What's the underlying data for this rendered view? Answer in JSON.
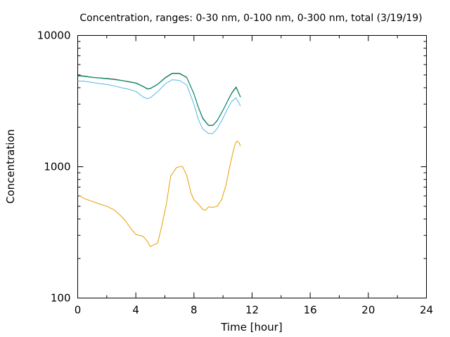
{
  "chart_data": {
    "type": "line",
    "title": "Concentration, ranges: 0-30 nm, 0-100 nm, 0-300 nm, total (3/19/19)",
    "xlabel": "Time [hour]",
    "ylabel": "Concentration",
    "xlim": [
      0,
      24
    ],
    "ylim": [
      100,
      10000
    ],
    "y_scale": "log",
    "x_ticks": [
      0,
      4,
      8,
      12,
      16,
      20,
      24
    ],
    "x_tick_labels": [
      "0",
      "4",
      "8",
      "12",
      "16",
      "20",
      "24"
    ],
    "y_ticks": [
      100,
      1000,
      10000
    ],
    "y_tick_labels": [
      "100",
      "1000",
      "10000"
    ],
    "grid": false,
    "legend": "none",
    "series": [
      {
        "color": "#1a1a1a",
        "x": [
          0,
          0.5,
          1,
          1.5,
          2,
          2.5,
          3,
          3.5,
          4,
          4.5,
          4.8,
          5,
          5.5,
          6,
          6.5,
          7,
          7.5,
          8,
          8.3,
          8.6,
          9,
          9.3,
          9.6,
          10,
          10.3,
          10.6,
          10.9,
          11.2
        ],
        "y": [
          4950,
          4900,
          4800,
          4750,
          4700,
          4650,
          4550,
          4450,
          4350,
          4100,
          3920,
          3950,
          4250,
          4750,
          5150,
          5150,
          4800,
          3600,
          2850,
          2350,
          2070,
          2070,
          2250,
          2700,
          3150,
          3650,
          4050,
          3400
        ]
      },
      {
        "color": "#009e73",
        "x": [
          0,
          0.5,
          1,
          1.5,
          2,
          2.5,
          3,
          3.5,
          4,
          4.5,
          4.8,
          5,
          5.5,
          6,
          6.5,
          7,
          7.5,
          8,
          8.3,
          8.6,
          9,
          9.3,
          9.6,
          10,
          10.3,
          10.6,
          10.9,
          11.2
        ],
        "y": [
          4920,
          4870,
          4780,
          4730,
          4680,
          4620,
          4530,
          4430,
          4330,
          4080,
          3900,
          3930,
          4230,
          4720,
          5120,
          5120,
          4780,
          3580,
          2830,
          2330,
          2060,
          2060,
          2240,
          2690,
          3130,
          3620,
          4010,
          3380
        ]
      },
      {
        "color": "#56b4e9",
        "x": [
          0,
          0.5,
          1,
          1.5,
          2,
          2.5,
          3,
          3.5,
          4,
          4.5,
          4.8,
          5,
          5.5,
          6,
          6.5,
          7,
          7.5,
          8,
          8.3,
          8.6,
          9,
          9.3,
          9.6,
          10,
          10.3,
          10.6,
          10.9,
          11.2
        ],
        "y": [
          4500,
          4480,
          4380,
          4300,
          4230,
          4130,
          4000,
          3900,
          3750,
          3400,
          3300,
          3350,
          3720,
          4250,
          4600,
          4550,
          4200,
          3000,
          2300,
          1950,
          1790,
          1790,
          1950,
          2350,
          2750,
          3150,
          3350,
          2900
        ]
      },
      {
        "color": "#e69f00",
        "x": [
          0,
          0.5,
          1,
          1.5,
          2,
          2.5,
          3,
          3.3,
          3.6,
          4,
          4.5,
          4.8,
          5,
          5.2,
          5.5,
          5.8,
          6.1,
          6.4,
          6.8,
          7.2,
          7.5,
          7.8,
          8,
          8.3,
          8.6,
          8.8,
          9,
          9.3,
          9.6,
          9.9,
          10.2,
          10.5,
          10.8,
          10.95,
          11.1,
          11.2
        ],
        "y": [
          610,
          570,
          545,
          520,
          500,
          470,
          420,
          385,
          345,
          305,
          295,
          270,
          247,
          253,
          262,
          360,
          520,
          850,
          985,
          1010,
          860,
          630,
          560,
          520,
          475,
          465,
          495,
          490,
          500,
          560,
          720,
          1050,
          1450,
          1570,
          1530,
          1440
        ]
      }
    ]
  }
}
